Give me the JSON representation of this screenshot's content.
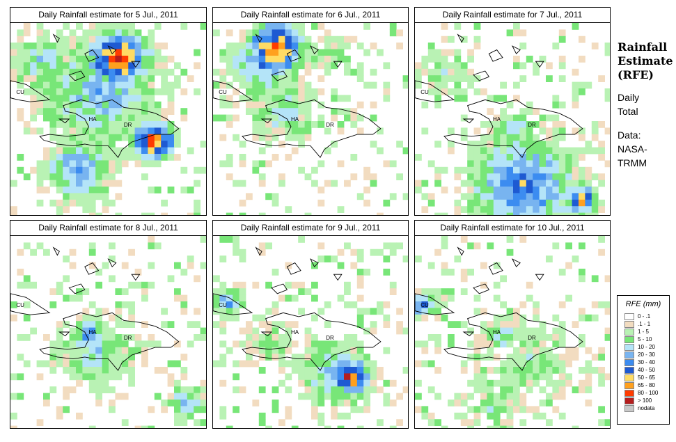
{
  "panels": [
    {
      "title": "Daily Rainfall estimate for  5 Jul., 2011",
      "intensity": "heavy-north-and-south",
      "labels": {
        "cuba": "CU",
        "haiti": "HA",
        "dr": "DR"
      }
    },
    {
      "title": "Daily Rainfall estimate for  6 Jul., 2011",
      "intensity": "moderate-north",
      "labels": {
        "cuba": "CU",
        "haiti": "HA",
        "dr": "DR"
      }
    },
    {
      "title": "Daily Rainfall estimate for  7 Jul., 2011",
      "intensity": "light-south",
      "labels": {
        "cuba": "CU",
        "haiti": "HA",
        "dr": "DR"
      }
    },
    {
      "title": "Daily Rainfall estimate for  8 Jul., 2011",
      "intensity": "light-west-haiti",
      "labels": {
        "cuba": "CU",
        "haiti": "HA",
        "dr": "DR"
      }
    },
    {
      "title": "Daily Rainfall estimate for  9 Jul., 2011",
      "intensity": "moderate-south",
      "labels": {
        "cuba": "CU",
        "haiti": "HA",
        "dr": "DR"
      }
    },
    {
      "title": "Daily Rainfall estimate for  10 Jul., 2011",
      "intensity": "scattered-light",
      "labels": {
        "cuba": "CU",
        "haiti": "HA",
        "dr": "DR"
      }
    }
  ],
  "sidebar": {
    "title_line1": "Rainfall",
    "title_line2": "Estimate",
    "title_line3": "(RFE)",
    "period_line1": "Daily",
    "period_line2": "Total",
    "source_line1": "Data:",
    "source_line2": "NASA-",
    "source_line3": "TRMM"
  },
  "legend": {
    "title": "RFE (mm)",
    "items": [
      {
        "label": "0 - .1",
        "color": "#ffffff"
      },
      {
        "label": ".1 - 1",
        "color": "#f2dcc0"
      },
      {
        "label": "1 - 5",
        "color": "#b9f2b4"
      },
      {
        "label": "5 - 10",
        "color": "#78e678"
      },
      {
        "label": "10 - 20",
        "color": "#b4e4f8"
      },
      {
        "label": "20 - 30",
        "color": "#78b4f0"
      },
      {
        "label": "30 - 40",
        "color": "#3c8cf0"
      },
      {
        "label": "40 - 50",
        "color": "#1e5ad2"
      },
      {
        "label": "50 - 65",
        "color": "#ffdc64"
      },
      {
        "label": "65 - 80",
        "color": "#ffa01e"
      },
      {
        "label": "80 - 100",
        "color": "#ff3c00"
      },
      {
        "label": "> 100",
        "color": "#b41e1e"
      },
      {
        "label": "nodata",
        "color": "#c8c8c8"
      }
    ]
  }
}
